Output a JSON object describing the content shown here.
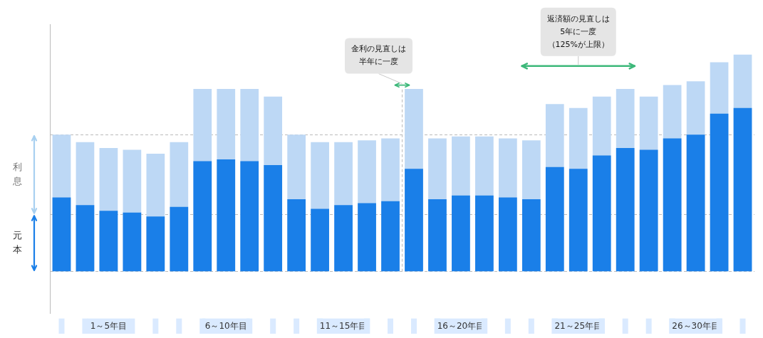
{
  "chart_data": {
    "type": "bar",
    "categories": [
      null,
      null,
      "1～5年目",
      null,
      null,
      null,
      null,
      "6～10年目",
      null,
      null,
      null,
      null,
      "11～15年目",
      null,
      null,
      null,
      null,
      "16～20年目",
      null,
      null,
      null,
      null,
      "21～25年目",
      null,
      null,
      null,
      null,
      "26～30年目",
      null,
      null
    ],
    "series": [
      {
        "color": "#bdd8f5",
        "values": [
          7.2,
          6.8,
          6.5,
          6.4,
          6.2,
          6.8,
          9.6,
          9.6,
          9.6,
          9.2,
          7.2,
          6.8,
          6.8,
          6.9,
          7.0,
          9.6,
          7.0,
          7.1,
          7.1,
          7.0,
          6.9,
          8.8,
          8.6,
          9.2,
          9.6,
          9.2,
          9.8,
          10.0,
          11.0,
          11.4
        ]
      },
      {
        "color": "#1a7fe8",
        "values": [
          3.9,
          3.5,
          3.2,
          3.1,
          2.9,
          3.4,
          5.8,
          5.9,
          5.8,
          5.6,
          3.8,
          3.3,
          3.5,
          3.6,
          3.7,
          5.4,
          3.8,
          4.0,
          4.0,
          3.9,
          3.8,
          5.5,
          5.4,
          6.1,
          6.5,
          6.4,
          7.0,
          7.2,
          8.3,
          8.6
        ]
      }
    ],
    "ylim": [
      -2.2,
      13
    ],
    "yticks": [
      0,
      3,
      7.2
    ],
    "grid": true,
    "tick_labels": "x",
    "annotations": [
      {
        "text": "利\n息",
        "y": [
          3,
          7.2
        ],
        "color": "#a8d0f0"
      },
      {
        "text": "元\n本",
        "y": [
          0,
          3
        ],
        "color": "#1a7fe8"
      },
      {
        "text": "金利の見直しは\n半年に一度",
        "x": 14.5,
        "y": 9.8,
        "color": "#3db87a"
      },
      {
        "text": "返済額の見直しは\n5年に一度\n（125%が上限）",
        "x": [
          19.6,
          24.4
        ],
        "y": 10.8,
        "color": "#3db87a"
      }
    ]
  }
}
